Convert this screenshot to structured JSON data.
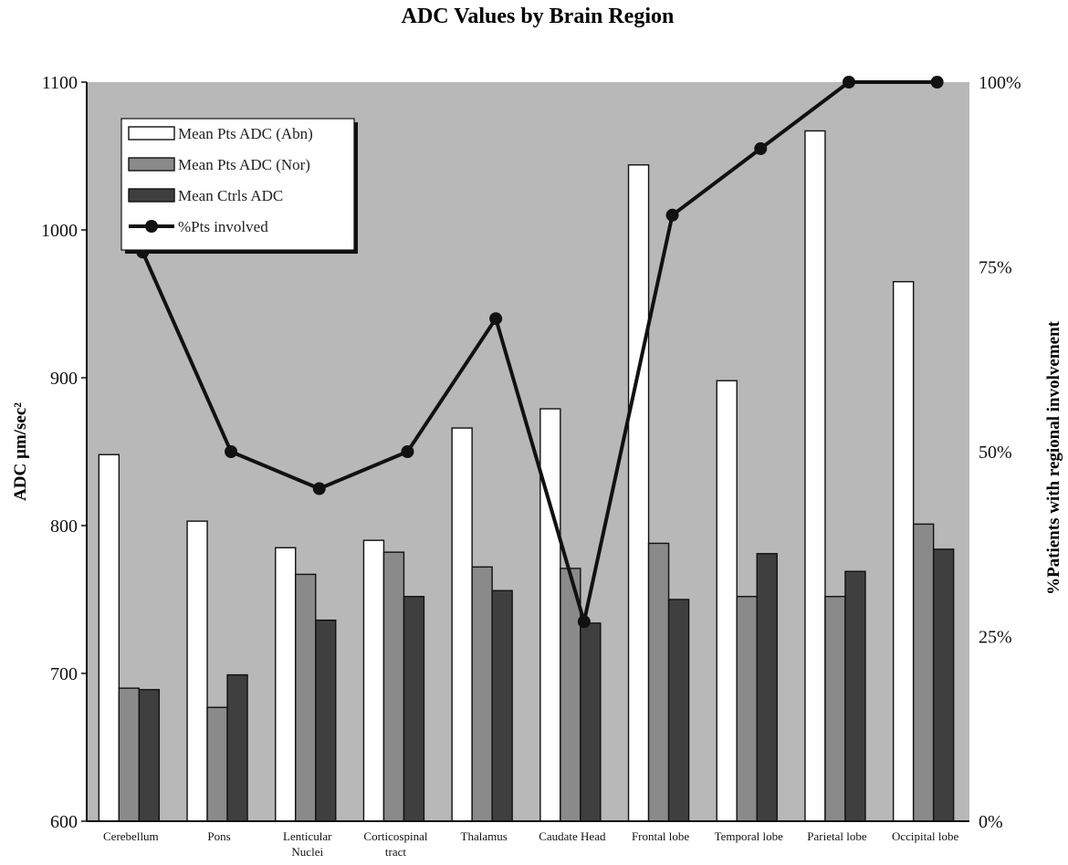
{
  "chart_data": {
    "type": "bar",
    "title": "ADC Values by Brain Region",
    "ylabel": "ADC µm/sec²",
    "y2label": "%Patients with regional involvement",
    "ylim": [
      600,
      1100
    ],
    "yticks": [
      "600",
      "700",
      "800",
      "900",
      "1000",
      "1100"
    ],
    "y2lim": [
      0,
      100
    ],
    "y2ticks": [
      "0%",
      "25%",
      "50%",
      "75%",
      "100%"
    ],
    "categories": [
      [
        "Cerebellum"
      ],
      [
        "Pons"
      ],
      [
        "Lenticular",
        "Nuclei"
      ],
      [
        "Corticospinal",
        "tract"
      ],
      [
        "Thalamus"
      ],
      [
        "Caudate Head"
      ],
      [
        "Frontal lobe"
      ],
      [
        "Temporal lobe"
      ],
      [
        "Parietal lobe"
      ],
      [
        "Occipital lobe"
      ]
    ],
    "series": [
      {
        "name": "Mean Pts ADC (Abn)",
        "axis": "left",
        "kind": "bar",
        "color": "#ffffff",
        "values": [
          848,
          803,
          785,
          790,
          866,
          879,
          1044,
          898,
          1067,
          965
        ]
      },
      {
        "name": "Mean Pts ADC (Nor)",
        "axis": "left",
        "kind": "bar",
        "color": "#8a8a8a",
        "values": [
          690,
          677,
          767,
          782,
          772,
          771,
          788,
          752,
          752,
          801
        ]
      },
      {
        "name": "Mean Ctrls ADC",
        "axis": "left",
        "kind": "bar",
        "color": "#3f3f3f",
        "values": [
          689,
          699,
          736,
          752,
          756,
          734,
          750,
          781,
          769,
          784
        ]
      },
      {
        "name": "%Pts involved",
        "axis": "right",
        "kind": "line",
        "color": "#111111",
        "values": [
          77,
          50,
          45,
          50,
          68,
          27,
          82,
          91,
          100,
          100
        ]
      }
    ],
    "legend_position": "top-left",
    "plot_background": "#b8b8b8"
  }
}
